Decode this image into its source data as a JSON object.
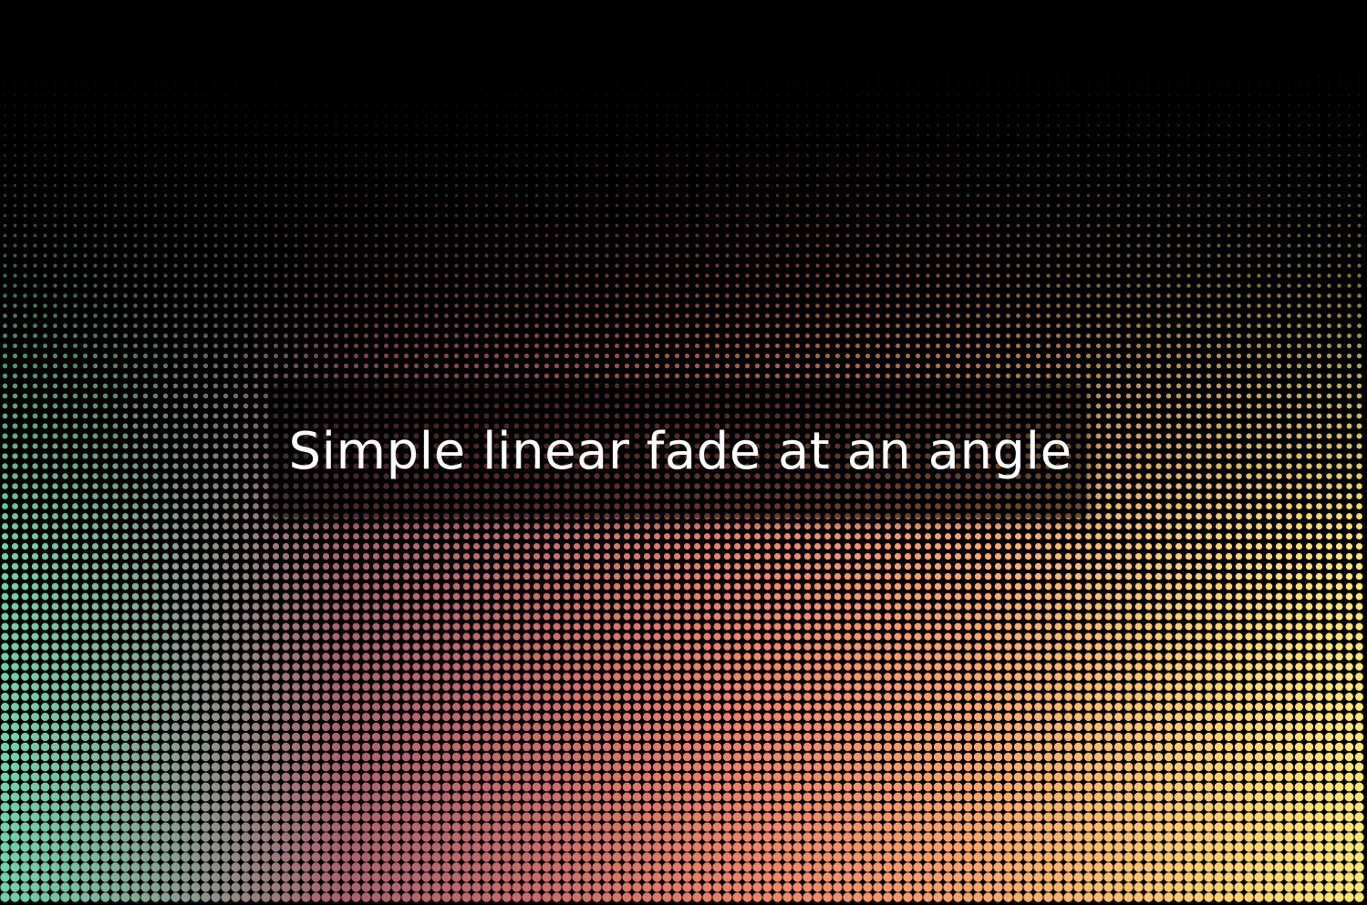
{
  "caption": {
    "text": "Simple linear fade at an angle"
  },
  "colors": {
    "background": "#000000",
    "gradient_stops": [
      "#6fd3ad",
      "#8a9a8e",
      "#a8636e",
      "#c96e6a",
      "#ee8568",
      "#f8a26c",
      "#fcc872",
      "#fde774"
    ],
    "caption_text": "#ffffff"
  }
}
